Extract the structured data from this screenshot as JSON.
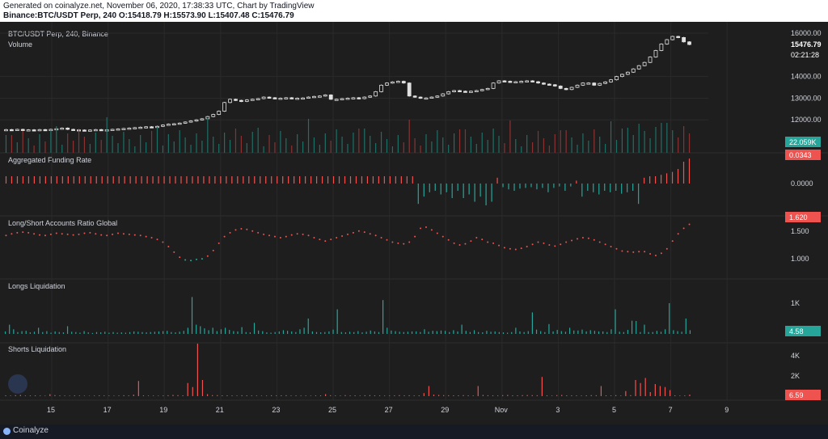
{
  "header": {
    "line1": "Generated on coinalyze.net, November 06, 2020, 17:38:33 UTC, Chart by TradingView",
    "line2": "Binance:BTC/USDT Perp, 240 O:15418.79 H:15573.90 L:15407.48 C:15476.79"
  },
  "footer": {
    "brand": "Coinalyze"
  },
  "colors": {
    "up": "#26a69a",
    "down": "#ef5350",
    "candle": "#e0e0e0",
    "bg": "#1e1e1e",
    "grid": "#2a2a2a"
  },
  "chart_data": [
    {
      "type": "candlestick",
      "title": "BTC/USDT Perp, 240, Binance",
      "subtitle": "Volume",
      "yticks": [
        "16000.00",
        "14000.00",
        "13000.00",
        "12000.00"
      ],
      "ytick_values": [
        16000,
        14000,
        13000,
        12000
      ],
      "ylim": [
        11300,
        16300
      ],
      "last_price": "15476.79",
      "countdown": "02:21:28",
      "volume_label": "22.059K",
      "closes": [
        11550,
        11530,
        11560,
        11520,
        11540,
        11510,
        11550,
        11520,
        11560,
        11590,
        11620,
        11560,
        11540,
        11530,
        11510,
        11530,
        11550,
        11520,
        11540,
        11560,
        11580,
        11600,
        11620,
        11640,
        11660,
        11680,
        11650,
        11700,
        11760,
        11800,
        11820,
        11850,
        11900,
        11950,
        12000,
        12050,
        12150,
        12250,
        12400,
        12800,
        12950,
        12900,
        12850,
        12920,
        12950,
        12980,
        13050,
        13020,
        12980,
        13000,
        13020,
        12980,
        13000,
        13010,
        13050,
        13080,
        13100,
        13150,
        12950,
        12950,
        12980,
        13000,
        13020,
        12980,
        13050,
        13100,
        13300,
        13600,
        13700,
        13750,
        13780,
        13700,
        13100,
        13050,
        13000,
        13010,
        13050,
        13100,
        13200,
        13300,
        13350,
        13320,
        13300,
        13320,
        13350,
        13400,
        13450,
        13700,
        13800,
        13780,
        13750,
        13760,
        13780,
        13800,
        13760,
        13700,
        13650,
        13620,
        13560,
        13450,
        13400,
        13500,
        13600,
        13700,
        13700,
        13600,
        13680,
        13750,
        13850,
        14000,
        14100,
        14200,
        14350,
        14500,
        14650,
        14900,
        15200,
        15500,
        15700,
        15850,
        15800,
        15600,
        15476.79
      ]
    },
    {
      "type": "bar",
      "title": "Aggregated Funding Rate",
      "ytick": "0.0000",
      "current": "0.0343",
      "values": [
        0.01,
        0.01,
        0.01,
        0.01,
        0.01,
        0.01,
        0.01,
        0.01,
        0.01,
        0.01,
        0.01,
        0.01,
        0.01,
        0.01,
        0.01,
        0.01,
        0.01,
        0.01,
        0.01,
        0.01,
        0.01,
        0.01,
        0.01,
        0.01,
        0.01,
        0.01,
        0.01,
        0.01,
        0.01,
        0.01,
        0.01,
        0.01,
        0.01,
        0.01,
        0.01,
        0.01,
        0.01,
        0.01,
        0.01,
        0.01,
        0.01,
        0.01,
        0.01,
        0.01,
        0.01,
        0.01,
        0.01,
        0.01,
        0.01,
        0.01,
        0.01,
        0.01,
        0.01,
        0.01,
        0.01,
        0.01,
        0.01,
        0.01,
        0.01,
        0.01,
        0.01,
        0.01,
        0.01,
        0.01,
        0.01,
        0.01,
        0.01,
        0.01,
        0.01,
        0.01,
        0.01,
        0.01,
        0.01,
        -0.028,
        -0.018,
        -0.012,
        -0.01,
        -0.015,
        -0.012,
        -0.02,
        -0.01,
        -0.02,
        -0.015,
        -0.025,
        -0.018,
        -0.03,
        -0.025,
        0.008,
        -0.005,
        -0.008,
        -0.01,
        -0.007,
        -0.006,
        -0.005,
        -0.008,
        -0.006,
        -0.012,
        -0.006,
        -0.004,
        -0.01,
        -0.004,
        0.004,
        -0.018,
        -0.01,
        -0.012,
        -0.015,
        -0.01,
        -0.012,
        -0.01,
        -0.014,
        -0.012,
        -0.01,
        -0.028,
        0.008,
        0.01,
        0.01,
        0.012,
        0.014,
        0.016,
        0.02,
        0.03,
        0.0343
      ]
    },
    {
      "type": "scatter",
      "title": "Long/Short Accounts Ratio Global",
      "yticks": [
        "1.500",
        "1.000"
      ],
      "ytick_values": [
        1.5,
        1.0
      ],
      "current": "1.620",
      "values": [
        1.42,
        1.45,
        1.47,
        1.48,
        1.47,
        1.45,
        1.43,
        1.42,
        1.44,
        1.46,
        1.45,
        1.44,
        1.43,
        1.44,
        1.46,
        1.47,
        1.45,
        1.43,
        1.42,
        1.44,
        1.46,
        1.45,
        1.44,
        1.43,
        1.42,
        1.4,
        1.38,
        1.35,
        1.3,
        1.22,
        1.12,
        1.03,
        0.98,
        0.97,
        0.99,
        1.0,
        1.05,
        1.15,
        1.28,
        1.4,
        1.47,
        1.52,
        1.54,
        1.53,
        1.5,
        1.47,
        1.44,
        1.42,
        1.4,
        1.38,
        1.4,
        1.43,
        1.45,
        1.44,
        1.42,
        1.38,
        1.35,
        1.32,
        1.35,
        1.38,
        1.41,
        1.44,
        1.47,
        1.5,
        1.48,
        1.45,
        1.42,
        1.38,
        1.34,
        1.3,
        1.28,
        1.27,
        1.3,
        1.4,
        1.55,
        1.57,
        1.52,
        1.46,
        1.4,
        1.34,
        1.28,
        1.25,
        1.27,
        1.32,
        1.38,
        1.35,
        1.3,
        1.28,
        1.24,
        1.2,
        1.18,
        1.17,
        1.19,
        1.22,
        1.26,
        1.3,
        1.28,
        1.25,
        1.23,
        1.26,
        1.3,
        1.33,
        1.36,
        1.38,
        1.37,
        1.34,
        1.3,
        1.26,
        1.22,
        1.18,
        1.14,
        1.13,
        1.12,
        1.13,
        1.13,
        1.09,
        1.06,
        1.1,
        1.18,
        1.32,
        1.45,
        1.55,
        1.62
      ]
    },
    {
      "type": "bar",
      "title": "Longs Liquidation",
      "ytick": "1K",
      "ytick_value": 1000,
      "current": "4.58",
      "values": [
        80,
        300,
        150,
        60,
        90,
        100,
        50,
        70,
        200,
        60,
        90,
        40,
        80,
        60,
        50,
        250,
        70,
        60,
        40,
        90,
        50,
        30,
        60,
        50,
        70,
        40,
        60,
        40,
        50,
        40,
        60,
        80,
        70,
        60,
        50,
        60,
        70,
        80,
        90,
        100,
        60,
        50,
        70,
        100,
        200,
        1200,
        300,
        250,
        180,
        120,
        200,
        90,
        150,
        200,
        130,
        90,
        80,
        220,
        60,
        50,
        360,
        110,
        90,
        50,
        40,
        60,
        80,
        120,
        100,
        80,
        60,
        150,
        200,
        500,
        80,
        60,
        50,
        60,
        80,
        140,
        800,
        60,
        50,
        70,
        60,
        90,
        50,
        70,
        110,
        80,
        60,
        1100,
        200,
        110,
        90,
        70,
        60,
        70,
        80,
        80,
        60,
        150,
        70,
        100,
        90,
        110,
        100,
        60,
        120,
        80,
        300,
        100,
        60,
        120,
        60,
        50,
        100,
        70,
        80,
        60,
        50,
        40,
        60,
        200,
        80,
        60,
        90,
        700,
        140,
        90,
        60,
        320,
        80,
        130,
        90,
        70,
        200,
        110,
        110,
        140,
        80,
        120,
        100,
        80,
        80,
        60,
        150,
        800,
        70,
        60,
        130,
        430,
        420,
        60,
        300,
        60,
        60,
        100,
        70,
        150,
        1000,
        120,
        90,
        70,
        500,
        120
      ]
    },
    {
      "type": "bar",
      "title": "Shorts Liquidation",
      "yticks": [
        "4K",
        "2K"
      ],
      "ytick_values": [
        4000,
        2000
      ],
      "current": "6.59",
      "values": [
        80,
        60,
        100,
        120,
        60,
        70,
        80,
        60,
        50,
        200,
        100,
        70,
        60,
        50,
        80,
        60,
        50,
        40,
        60,
        80,
        70,
        60,
        50,
        60,
        90,
        70,
        150,
        1500,
        80,
        60,
        60,
        50,
        70,
        90,
        120,
        100,
        80,
        1300,
        900,
        5200,
        1600,
        200,
        100,
        100,
        80,
        80,
        70,
        60,
        90,
        80,
        70,
        60,
        50,
        60,
        90,
        70,
        80,
        90,
        60,
        70,
        60,
        60,
        50,
        70,
        80,
        200,
        90,
        70,
        60,
        100,
        70,
        80,
        60,
        90,
        100,
        80,
        70,
        60,
        70,
        80,
        100,
        80,
        90,
        70,
        80,
        300,
        1000,
        150,
        120,
        100,
        90,
        80,
        80,
        100,
        80,
        70,
        1000,
        120,
        90,
        80,
        70,
        100,
        120,
        80,
        80,
        100,
        110,
        100,
        90,
        1900,
        80,
        60,
        100,
        120,
        80,
        80,
        70,
        60,
        80,
        100,
        90,
        1000,
        80,
        70,
        100,
        60,
        500,
        100,
        1600,
        1300,
        1800,
        400,
        1200,
        1000,
        900,
        600,
        80,
        60,
        70,
        150
      ]
    }
  ],
  "xaxis": {
    "labels": [
      "15",
      "17",
      "19",
      "21",
      "23",
      "25",
      "27",
      "29",
      "Nov",
      "3",
      "5",
      "7",
      "9"
    ]
  }
}
